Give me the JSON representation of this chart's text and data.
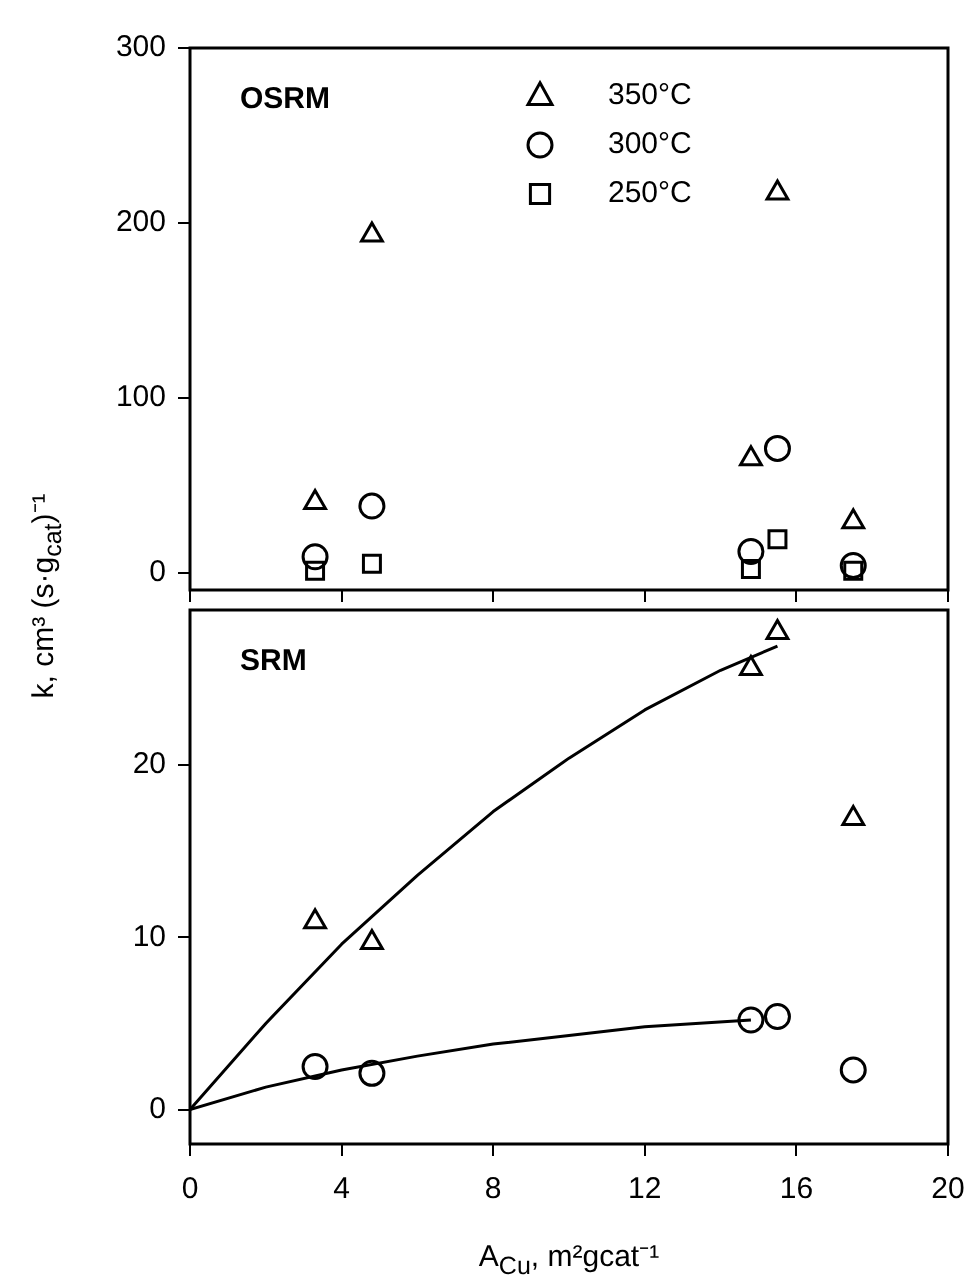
{
  "chart_data": [
    {
      "type": "scatter",
      "title": "OSRM",
      "ylabel": "k, cm³ (s·g$_{cat}$)⁻¹",
      "x": [
        3.3,
        4.8,
        14.8,
        15.5,
        17.5
      ],
      "xlim": [
        0,
        20
      ],
      "xticks": [
        0,
        4,
        8,
        12,
        16,
        20
      ],
      "ylim": [
        -10,
        300
      ],
      "yticks": [
        0,
        100,
        200,
        300
      ],
      "tick_labels": "y",
      "grid": false,
      "legend": "top",
      "series": [
        {
          "name": "350°C",
          "color": "#000000",
          "marker": "triangle",
          "values": [
            40,
            193,
            65,
            217,
            29
          ]
        },
        {
          "name": "300°C",
          "color": "#000000",
          "marker": "circle",
          "values": [
            9,
            38,
            12,
            71,
            4
          ]
        },
        {
          "name": "250°C",
          "color": "#000000",
          "marker": "square",
          "values": [
            1,
            5,
            2,
            19,
            1
          ]
        }
      ]
    },
    {
      "type": "scatter",
      "title": "SRM",
      "xlabel": "A$_{Cu}$, m²gcat⁻¹",
      "x": [
        3.3,
        4.8,
        14.8,
        15.5,
        17.5
      ],
      "xlim": [
        0,
        20
      ],
      "xticks": [
        0,
        4,
        8,
        12,
        16,
        20
      ],
      "ylim": [
        -2,
        29
      ],
      "yticks": [
        0,
        10,
        20
      ],
      "grid": false,
      "series": [
        {
          "color": "#000000",
          "marker": "triangle",
          "values": [
            10.9,
            9.7,
            25.6,
            27.7,
            16.9
          ]
        },
        {
          "color": "#000000",
          "marker": "circle",
          "values": [
            2.5,
            2.1,
            5.2,
            5.4,
            2.3
          ]
        },
        {
          "type": "line",
          "color": "#000000",
          "marker": "none",
          "x": [
            0,
            2,
            4,
            6,
            8,
            10,
            12,
            14,
            15.5
          ],
          "values": [
            0,
            5.0,
            9.6,
            13.6,
            17.3,
            20.4,
            23.2,
            25.5,
            26.9
          ]
        },
        {
          "type": "line",
          "color": "#000000",
          "marker": "none",
          "x": [
            0,
            2,
            4,
            6,
            8,
            10,
            12,
            14.8
          ],
          "values": [
            0,
            1.3,
            2.3,
            3.1,
            3.8,
            4.3,
            4.8,
            5.2
          ]
        }
      ]
    }
  ]
}
